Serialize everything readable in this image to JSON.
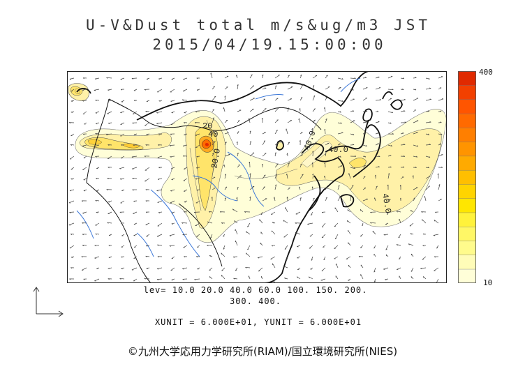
{
  "title": {
    "line1": "U-V&Dust total m/s&ug/m3 JST",
    "line2": "2015/04/19.15:00:00"
  },
  "colorbar": {
    "max_label": "400",
    "min_label": "10",
    "colors": [
      "#fffed8",
      "#fffcb8",
      "#fffb8c",
      "#fff766",
      "#fff23b",
      "#ffe600",
      "#ffd400",
      "#ffbf00",
      "#ffaa00",
      "#ff9400",
      "#ff7f00",
      "#ff6a00",
      "#ff5500",
      "#f24000",
      "#e02a00"
    ]
  },
  "contour_levels": {
    "line1": "lev= 10.0 20.0 40.0 60.0 100. 150. 200.",
    "line2": "300. 400."
  },
  "units": {
    "text": "XUNIT = 6.000E+01, YUNIT = 6.000E+01"
  },
  "map_labels": {
    "a": "20.0",
    "b": "40.0",
    "c": "40.0",
    "d": "40.0",
    "e": "20",
    "f": "40"
  },
  "copyright": "©九州大学応用力学研究所(RIAM)/国立環境研究所(NIES)"
}
